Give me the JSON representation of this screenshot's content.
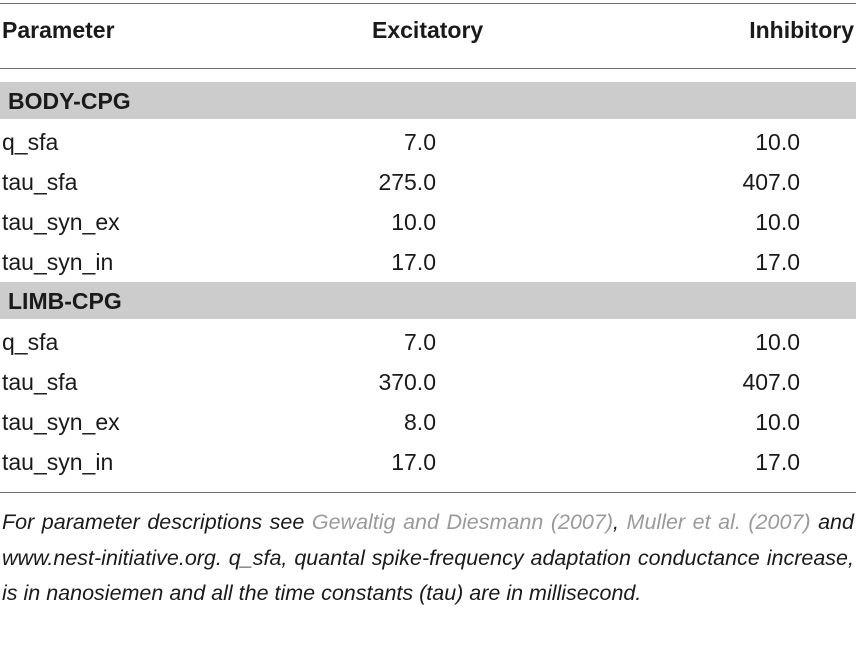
{
  "table": {
    "headers": {
      "parameter": "Parameter",
      "excitatory": "Excitatory",
      "inhibitory": "Inhibitory"
    },
    "sections": [
      {
        "title": "BODY-CPG",
        "rows": [
          {
            "name": "q_sfa",
            "excitatory": "7.0",
            "inhibitory": "10.0"
          },
          {
            "name": "tau_sfa",
            "excitatory": "275.0",
            "inhibitory": "407.0"
          },
          {
            "name": "tau_syn_ex",
            "excitatory": "10.0",
            "inhibitory": "10.0"
          },
          {
            "name": "tau_syn_in",
            "excitatory": "17.0",
            "inhibitory": "17.0"
          }
        ]
      },
      {
        "title": "LIMB-CPG",
        "rows": [
          {
            "name": "q_sfa",
            "excitatory": "7.0",
            "inhibitory": "10.0"
          },
          {
            "name": "tau_sfa",
            "excitatory": "370.0",
            "inhibitory": "407.0"
          },
          {
            "name": "tau_syn_ex",
            "excitatory": "8.0",
            "inhibitory": "10.0"
          },
          {
            "name": "tau_syn_in",
            "excitatory": "17.0",
            "inhibitory": "17.0"
          }
        ]
      }
    ]
  },
  "footnote": {
    "part1": "For parameter descriptions see ",
    "cite1": "Gewaltig and Diesmann (2007)",
    "part2": ", ",
    "cite2": "Muller et al. (2007)",
    "part3": " and www.nest-initiative.org. q_sfa, quantal spike-frequency adaptation conductance increase, is in nanosiemen and all the time constants (tau) are in millisecond."
  },
  "colors": {
    "section_band": "#cccccc",
    "citation": "#9a9a9a",
    "rule": "#6f6f6f"
  }
}
